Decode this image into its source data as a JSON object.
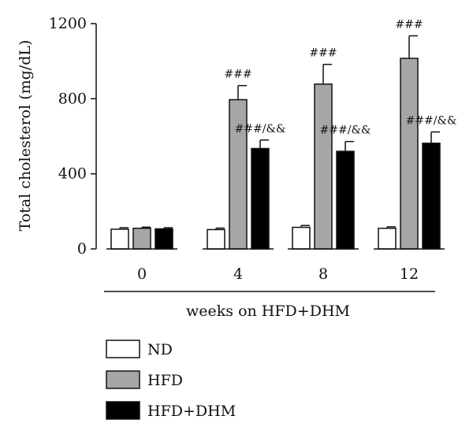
{
  "chart_data": {
    "type": "bar",
    "ylabel": "Total cholesterol (mg/dL)",
    "xlabel": "weeks on HFD+DHM",
    "categories": [
      "0",
      "4",
      "8",
      "12"
    ],
    "ylim": [
      0,
      1200
    ],
    "yticks": [
      0,
      400,
      800,
      1200
    ],
    "series": [
      {
        "name": "ND",
        "color": "#ffffff",
        "values": [
          105,
          103,
          115,
          110
        ],
        "errors": [
          8,
          8,
          10,
          8
        ],
        "annotations": [
          "",
          "",
          "",
          ""
        ]
      },
      {
        "name": "HFD",
        "color": "#a6a6a6",
        "values": [
          110,
          795,
          878,
          1015
        ],
        "errors": [
          6,
          75,
          105,
          120
        ],
        "annotations": [
          "",
          "###",
          "###",
          "###"
        ]
      },
      {
        "name": "HFD+DHM",
        "color": "#000000",
        "values": [
          107,
          535,
          520,
          563
        ],
        "errors": [
          6,
          45,
          52,
          60
        ],
        "annotations": [
          "",
          "###/&&",
          "###/&&",
          "###/&&"
        ]
      }
    ],
    "grid": false,
    "legend": "bottom-left"
  }
}
